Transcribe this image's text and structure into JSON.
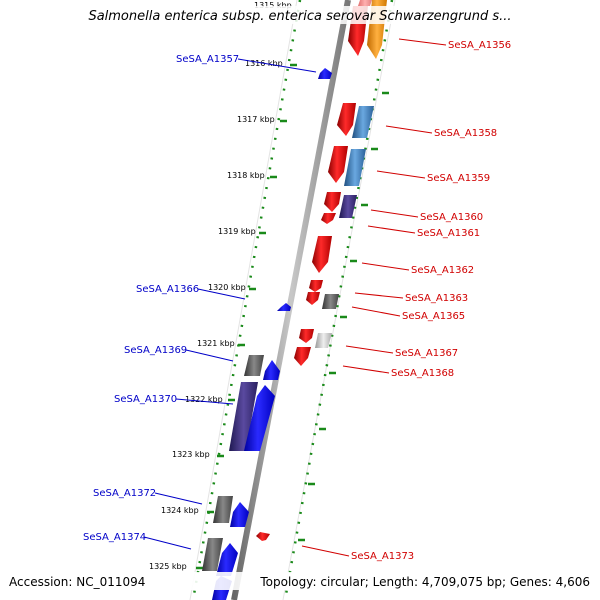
{
  "title": "Salmonella enterica subsp. enterica serovar Schwarzengrund s...",
  "footer": {
    "accession": "Accession: NC_011094",
    "topology": "Topology: circular; Length: 4,709,075 bp; Genes: 4,606"
  },
  "ticks": [
    "1315 kbp",
    "1316 kbp",
    "1317 kbp",
    "1318 kbp",
    "1319 kbp",
    "1320 kbp",
    "1321 kbp",
    "1322 kbp",
    "1323 kbp",
    "1324 kbp",
    "1325 kbp"
  ],
  "genes_right": [
    "SeSA_A1356",
    "SeSA_A1358",
    "SeSA_A1359",
    "SeSA_A1360",
    "SeSA_A1361",
    "SeSA_A1362",
    "SeSA_A1363",
    "SeSA_A1365",
    "SeSA_A1367",
    "SeSA_A1368",
    "SeSA_A1373"
  ],
  "genes_left": [
    "SeSA_A1357",
    "SeSA_A1366",
    "SeSA_A1369",
    "SeSA_A1370",
    "SeSA_A1372",
    "SeSA_A1374"
  ],
  "colors": {
    "backbone": "#8a8a8a",
    "tick_dots": "#1a8a1a",
    "red_gene": "#e00000",
    "orange_gene": "#ff9900",
    "blue_gene": "#0000ff",
    "steel_gene": "#3a7ab8",
    "purple_gene": "#3a2e7a",
    "gray_gene": "#555555",
    "light_gene": "#bbbbbb",
    "label_right": "#d10000",
    "label_left": "#0000c8"
  }
}
